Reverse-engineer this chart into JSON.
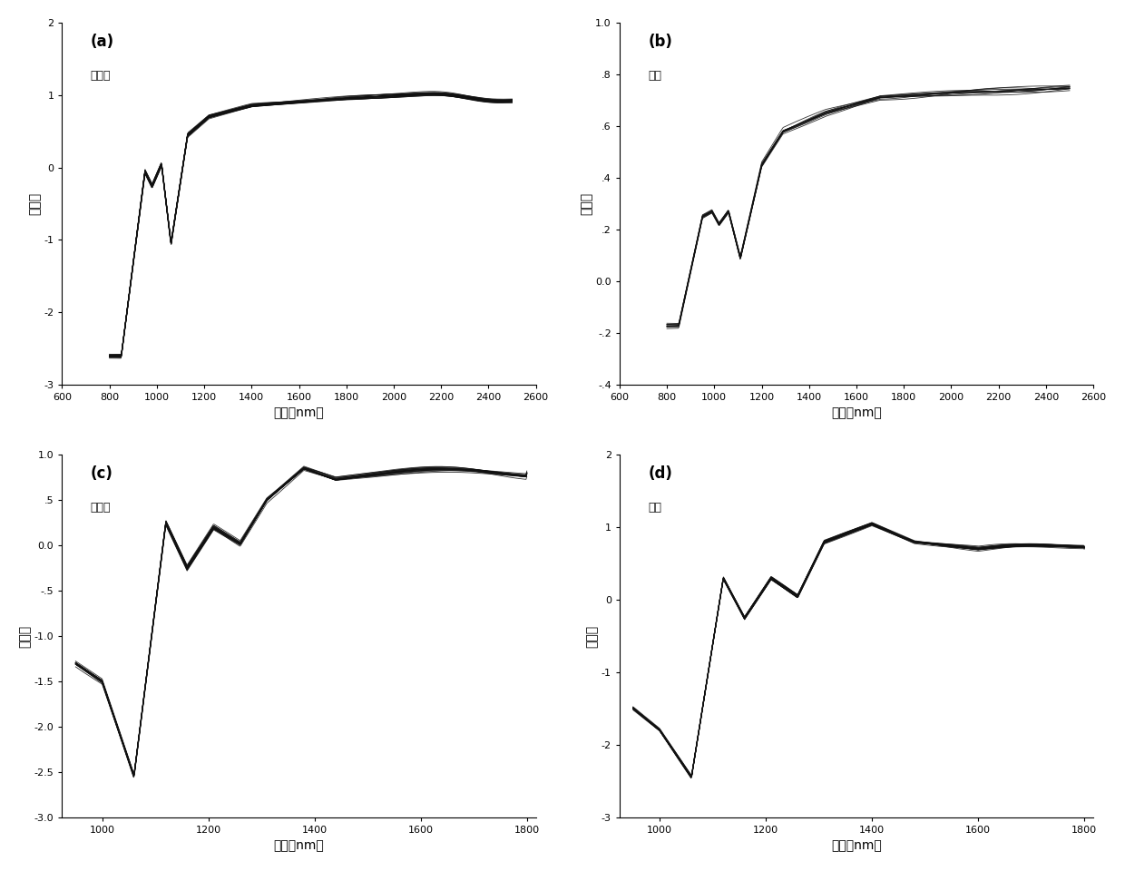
{
  "subplot_labels": [
    "(a)",
    "(b)",
    "(c)",
    "(d)"
  ],
  "subplot_titles_a": "红宝石",
  "subplot_titles_b": "夏黑",
  "subplot_titles_c": "红宝石",
  "subplot_titles_d": "夏黑",
  "xlabel": "波长（nm）",
  "ylabel": "吸光度",
  "plot_color": "#111111",
  "background_color": "#ffffff",
  "panels": [
    {
      "xmin": 800,
      "xmax": 2500,
      "ymin": -3,
      "ymax": 2,
      "xticks": [
        600,
        800,
        1000,
        1200,
        1400,
        1600,
        1800,
        2000,
        2200,
        2400,
        2600
      ],
      "yticks": [
        -3,
        -2,
        -1,
        0,
        1,
        2
      ],
      "ytick_labels": [
        "-3",
        "-2",
        "-1",
        "0",
        "1",
        "2"
      ],
      "n_curves": 25,
      "curve_type": "a"
    },
    {
      "xmin": 800,
      "xmax": 2500,
      "ymin": -0.4,
      "ymax": 1.0,
      "xticks": [
        600,
        800,
        1000,
        1200,
        1400,
        1600,
        1800,
        2000,
        2200,
        2400,
        2600
      ],
      "yticks": [
        -0.4,
        -0.2,
        0.0,
        0.2,
        0.4,
        0.6,
        0.8,
        1.0
      ],
      "ytick_labels": [
        "-.4",
        "-.2",
        "0.0",
        ".2",
        ".4",
        ".6",
        ".8",
        "1.0"
      ],
      "n_curves": 12,
      "curve_type": "b"
    },
    {
      "xmin": 950,
      "xmax": 1800,
      "ymin": -3.0,
      "ymax": 1.0,
      "xticks": [
        1000,
        1200,
        1400,
        1600,
        1800
      ],
      "yticks": [
        -3.0,
        -2.5,
        -2.0,
        -1.5,
        -1.0,
        -0.5,
        0.0,
        0.5,
        1.0
      ],
      "ytick_labels": [
        "-3.0",
        "-2.5",
        "-2.0",
        "-1.5",
        "-1.0",
        "-.5",
        "0.0",
        ".5",
        "1.0"
      ],
      "n_curves": 20,
      "curve_type": "c"
    },
    {
      "xmin": 950,
      "xmax": 1800,
      "ymin": -3,
      "ymax": 2,
      "xticks": [
        1000,
        1200,
        1400,
        1600,
        1800
      ],
      "yticks": [
        -3,
        -2,
        -1,
        0,
        1,
        2
      ],
      "ytick_labels": [
        "-3",
        "-2",
        "-1",
        "0",
        "1",
        "2"
      ],
      "n_curves": 20,
      "curve_type": "d"
    }
  ]
}
